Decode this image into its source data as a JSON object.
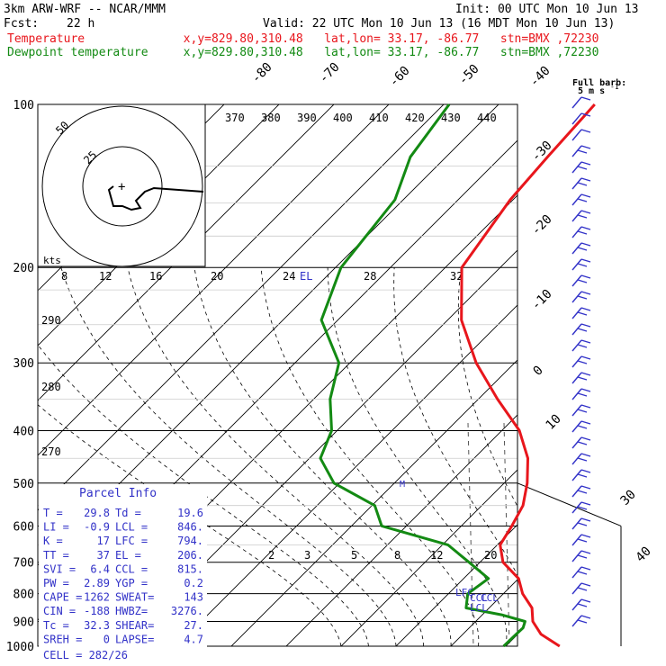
{
  "header": {
    "model": "3km ARW-WRF -- NCAR/MMM",
    "init": "Init: 00 UTC Mon 10 Jun 13",
    "fcst_label": "Fcst:",
    "fcst_hours": "22 h",
    "valid": "Valid: 22 UTC Mon 10 Jun 13 (16 MDT Mon 10 Jun 13)",
    "temp_line": "Temperature              x,y=829.80,310.48   lat,lon= 33.17, -86.77   stn=BMX ,72230",
    "dew_line": "Dewpoint temperature     x,y=829.80,310.48   lat,lon= 33.17, -86.77   stn=BMX ,72230",
    "colors": {
      "temperature": "#e8161c",
      "dewpoint": "#138a13",
      "barb": "#3232c8"
    }
  },
  "chart_data": {
    "type": "line",
    "pressure_levels": [
      100,
      200,
      300,
      400,
      500,
      600,
      700,
      800,
      900,
      1000
    ],
    "isotherm_labels": [
      -80,
      -70,
      -60,
      -50,
      -40,
      -30,
      -20,
      -10,
      0,
      10,
      30,
      40
    ],
    "theta_labels": [
      370,
      380,
      390,
      400,
      410,
      420,
      430,
      440
    ],
    "theta_side_labels": [
      290,
      280,
      270
    ],
    "mixing_ratio_labels": [
      "2",
      "3",
      "5",
      "8",
      "12",
      "20"
    ],
    "barb_legend": {
      "title": "Full barb:",
      "value": "5 m s",
      "exp": "-1"
    },
    "hodograph": {
      "ring_labels": [
        "50",
        "25"
      ],
      "kts_label": "kts",
      "scale_labels": [
        "8",
        "12",
        "16",
        "20",
        "24",
        "28",
        "32"
      ],
      "el_label": "EL",
      "trace": [
        [
          18,
          -3
        ],
        [
          7,
          -1
        ],
        [
          5,
          -3
        ],
        [
          3,
          -8
        ],
        [
          4,
          -12
        ],
        [
          2,
          -13
        ],
        [
          0,
          -11
        ],
        [
          -2,
          -11
        ],
        [
          -3,
          -2
        ],
        [
          -2,
          0
        ]
      ]
    },
    "markers": {
      "lcl": "LCL",
      "lfc": "LFC",
      "ccl": "CCL",
      "m": "M"
    },
    "series": [
      {
        "name": "Temperature",
        "pressure": [
          100,
          125,
          150,
          200,
          250,
          300,
          350,
          400,
          450,
          500,
          550,
          600,
          650,
          700,
          750,
          800,
          850,
          900,
          950,
          1000
        ],
        "temp_c": [
          -62.5,
          -61.5,
          -60.5,
          -57,
          -47.5,
          -37,
          -26.5,
          -16.8,
          -10.2,
          -5.8,
          -2.5,
          -0.8,
          0.5,
          4.2,
          10,
          13.5,
          17.8,
          20.4,
          24.2,
          29.8
        ]
      },
      {
        "name": "Dewpoint temperature",
        "pressure": [
          100,
          125,
          150,
          200,
          250,
          300,
          350,
          400,
          450,
          500,
          550,
          600,
          650,
          700,
          750,
          800,
          850,
          875,
          900,
          925,
          950,
          1000
        ],
        "temp_c": [
          -89,
          -86.5,
          -81.5,
          -79,
          -73,
          -62,
          -57,
          -51,
          -48,
          -41,
          -29.5,
          -24.5,
          -9,
          -2,
          4.5,
          3.5,
          5.8,
          13.5,
          19,
          19.8,
          19.7,
          19.6
        ]
      }
    ]
  },
  "parcel_info": {
    "title": "Parcel Info",
    "rows": [
      [
        "T  =",
        "29.8",
        "Td =",
        "19.6"
      ],
      [
        "LI =",
        "-0.9",
        "LCL =",
        "846."
      ],
      [
        "K  =",
        "17",
        "LFC =",
        "794."
      ],
      [
        "TT =",
        "37",
        "EL  =",
        "206."
      ],
      [
        "SVI =",
        "6.4",
        "CCL =",
        "815."
      ],
      [
        "PW =",
        "2.89",
        "YGP =",
        "0.2"
      ],
      [
        "CAPE =",
        "1262",
        "SWEAT=",
        "143"
      ],
      [
        "CIN =",
        "-188",
        "HWBZ=",
        "3276."
      ],
      [
        "Tc =",
        "32.3",
        "SHEAR=",
        "27."
      ],
      [
        "SREH =",
        "0",
        "LAPSE=",
        "4.7"
      ]
    ],
    "cell": "CELL = 282/26"
  }
}
